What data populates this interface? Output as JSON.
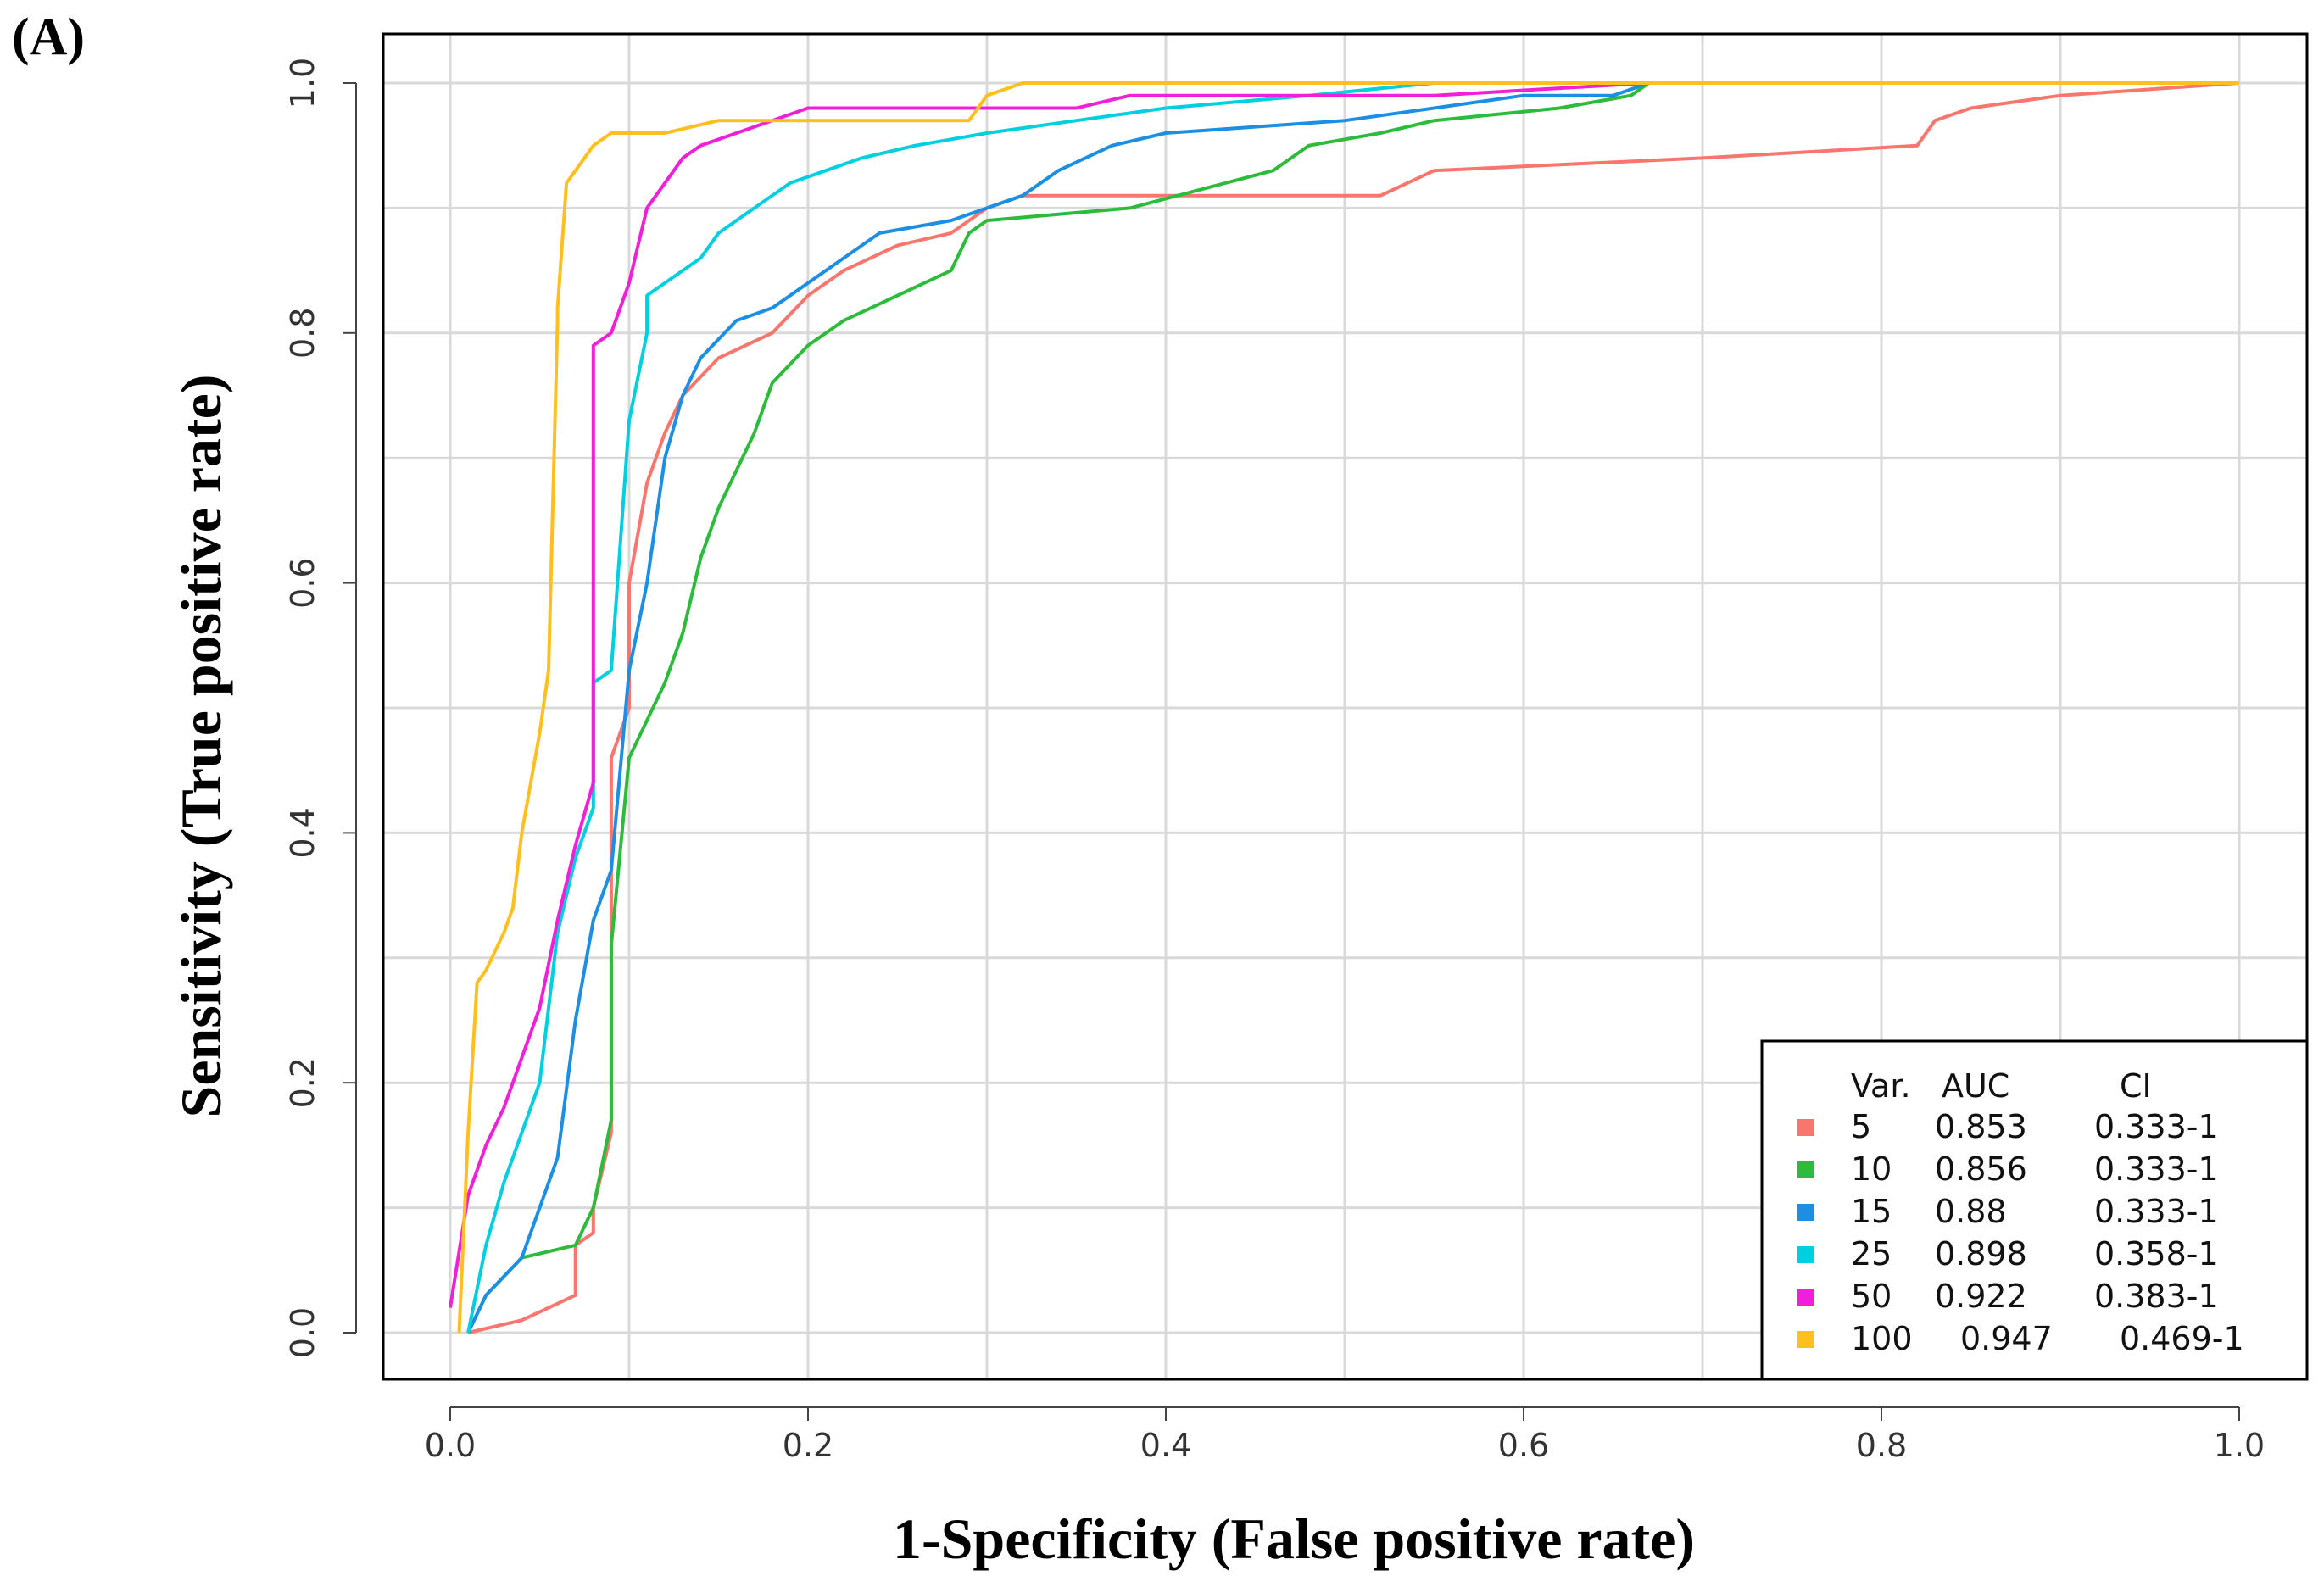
{
  "panel_label": "(A)",
  "chart_data": {
    "type": "line",
    "title": "",
    "xlabel": "1-Specificity (False positive rate)",
    "ylabel": "Sensitivity (True positive rate)",
    "xlim": [
      0,
      1
    ],
    "ylim": [
      0,
      1
    ],
    "grid": true,
    "x_ticks": [
      0.0,
      0.2,
      0.4,
      0.6,
      0.8,
      1.0
    ],
    "x_tick_labels": [
      "0.0",
      "0.2",
      "0.4",
      "0.6",
      "0.8",
      "1.0"
    ],
    "y_ticks": [
      0.0,
      0.2,
      0.4,
      0.6,
      0.8,
      1.0
    ],
    "y_tick_labels": [
      "0.0",
      "0.2",
      "0.4",
      "0.6",
      "0.8",
      "1.0"
    ],
    "legend": {
      "placement": "bottom-right",
      "headers": [
        "Var.",
        "AUC",
        "CI"
      ]
    },
    "series": [
      {
        "name": "5",
        "auc": "0.853",
        "ci": "0.333-1",
        "color": "#f8766d",
        "x": [
          0.01,
          0.04,
          0.07,
          0.07,
          0.08,
          0.08,
          0.09,
          0.09,
          0.1,
          0.1,
          0.11,
          0.12,
          0.13,
          0.15,
          0.18,
          0.2,
          0.22,
          0.25,
          0.28,
          0.3,
          0.32,
          0.4,
          0.52,
          0.55,
          0.7,
          0.82,
          0.83,
          0.85,
          0.9,
          1.0
        ],
        "y": [
          0.0,
          0.01,
          0.03,
          0.07,
          0.08,
          0.1,
          0.16,
          0.46,
          0.5,
          0.6,
          0.68,
          0.72,
          0.75,
          0.78,
          0.8,
          0.83,
          0.85,
          0.87,
          0.88,
          0.9,
          0.91,
          0.91,
          0.91,
          0.93,
          0.94,
          0.95,
          0.97,
          0.98,
          0.99,
          1.0
        ]
      },
      {
        "name": "10",
        "auc": "0.856",
        "ci": "0.333-1",
        "color": "#2dbb3b",
        "x": [
          0.01,
          0.02,
          0.04,
          0.07,
          0.08,
          0.09,
          0.09,
          0.1,
          0.11,
          0.12,
          0.13,
          0.14,
          0.15,
          0.16,
          0.17,
          0.18,
          0.2,
          0.22,
          0.25,
          0.28,
          0.29,
          0.3,
          0.38,
          0.46,
          0.48,
          0.52,
          0.55,
          0.62,
          0.66,
          0.67,
          1.0
        ],
        "y": [
          0.0,
          0.03,
          0.06,
          0.07,
          0.1,
          0.17,
          0.31,
          0.46,
          0.49,
          0.52,
          0.56,
          0.62,
          0.66,
          0.69,
          0.72,
          0.76,
          0.79,
          0.81,
          0.83,
          0.85,
          0.88,
          0.89,
          0.9,
          0.93,
          0.95,
          0.96,
          0.97,
          0.98,
          0.99,
          1.0,
          1.0
        ]
      },
      {
        "name": "15",
        "auc": "0.88",
        "ci": "0.333-1",
        "color": "#1c8fe3",
        "x": [
          0.01,
          0.02,
          0.04,
          0.06,
          0.07,
          0.08,
          0.09,
          0.095,
          0.1,
          0.11,
          0.12,
          0.13,
          0.14,
          0.16,
          0.18,
          0.2,
          0.22,
          0.24,
          0.28,
          0.32,
          0.34,
          0.37,
          0.4,
          0.5,
          0.55,
          0.6,
          0.65,
          0.67
        ],
        "y": [
          0.0,
          0.03,
          0.06,
          0.14,
          0.25,
          0.33,
          0.37,
          0.45,
          0.53,
          0.6,
          0.7,
          0.75,
          0.78,
          0.81,
          0.82,
          0.84,
          0.86,
          0.88,
          0.89,
          0.91,
          0.93,
          0.95,
          0.96,
          0.97,
          0.98,
          0.99,
          0.99,
          1.0
        ]
      },
      {
        "name": "25",
        "auc": "0.898",
        "ci": "0.358-1",
        "color": "#00cfe0",
        "x": [
          0.01,
          0.02,
          0.03,
          0.05,
          0.06,
          0.07,
          0.08,
          0.08,
          0.09,
          0.1,
          0.11,
          0.11,
          0.12,
          0.14,
          0.15,
          0.17,
          0.19,
          0.21,
          0.23,
          0.26,
          0.3,
          0.35,
          0.4,
          0.48,
          0.55,
          0.6,
          0.68,
          1.0
        ],
        "y": [
          0.0,
          0.07,
          0.12,
          0.2,
          0.32,
          0.38,
          0.42,
          0.52,
          0.53,
          0.73,
          0.8,
          0.83,
          0.84,
          0.86,
          0.88,
          0.9,
          0.92,
          0.93,
          0.94,
          0.95,
          0.96,
          0.97,
          0.98,
          0.99,
          1.0,
          1.0,
          1.0,
          1.0
        ]
      },
      {
        "name": "50",
        "auc": "0.922",
        "ci": "0.383-1",
        "color": "#f020d8",
        "x": [
          0.0,
          0.01,
          0.02,
          0.03,
          0.04,
          0.05,
          0.06,
          0.07,
          0.08,
          0.08,
          0.09,
          0.1,
          0.105,
          0.11,
          0.12,
          0.13,
          0.14,
          0.16,
          0.18,
          0.2,
          0.25,
          0.3,
          0.35,
          0.38,
          0.45,
          0.55,
          0.67,
          1.0
        ],
        "y": [
          0.02,
          0.11,
          0.15,
          0.18,
          0.22,
          0.26,
          0.33,
          0.39,
          0.44,
          0.79,
          0.8,
          0.84,
          0.87,
          0.9,
          0.92,
          0.94,
          0.95,
          0.96,
          0.97,
          0.98,
          0.98,
          0.98,
          0.98,
          0.99,
          0.99,
          0.99,
          1.0,
          1.0
        ]
      },
      {
        "name": "100",
        "auc": "0.947",
        "ci": "0.469-1",
        "color": "#ffbf1f",
        "x": [
          0.005,
          0.01,
          0.015,
          0.02,
          0.03,
          0.035,
          0.04,
          0.05,
          0.055,
          0.06,
          0.06,
          0.065,
          0.07,
          0.075,
          0.08,
          0.09,
          0.1,
          0.12,
          0.15,
          0.2,
          0.25,
          0.29,
          0.3,
          0.32,
          0.35,
          0.5,
          0.6,
          0.7,
          0.8,
          1.0
        ],
        "y": [
          0.0,
          0.16,
          0.28,
          0.29,
          0.32,
          0.34,
          0.4,
          0.48,
          0.53,
          0.81,
          0.82,
          0.92,
          0.93,
          0.94,
          0.95,
          0.96,
          0.96,
          0.96,
          0.97,
          0.97,
          0.97,
          0.97,
          0.99,
          1.0,
          1.0,
          1.0,
          1.0,
          1.0,
          1.0,
          1.0
        ]
      }
    ]
  }
}
